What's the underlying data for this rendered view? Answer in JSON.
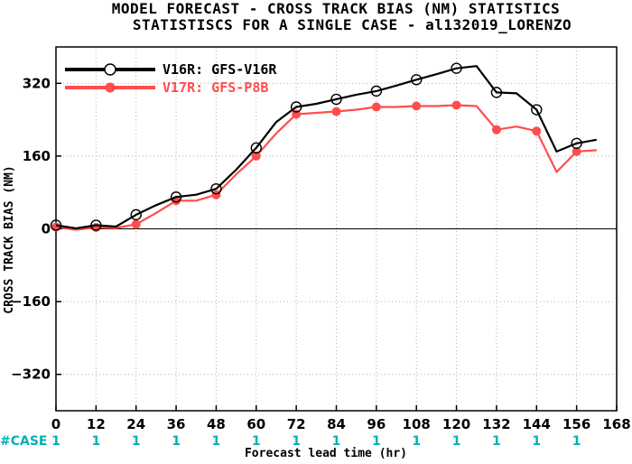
{
  "chart_data": {
    "type": "line",
    "title": "MODEL FORECAST - CROSS TRACK BIAS (NM) STATISTICS",
    "subtitle": "STATISTISCS FOR A SINGLE CASE - al132019_LORENZO",
    "xlabel": "Forecast lead time (hr)",
    "ylabel": "CROSS TRACK BIAS (NM)",
    "xlim": [
      0,
      168
    ],
    "ylim": [
      -400,
      400
    ],
    "xticks": [
      0,
      12,
      24,
      36,
      48,
      60,
      72,
      84,
      96,
      108,
      120,
      132,
      144,
      156,
      168
    ],
    "yticks": [
      -320,
      -160,
      0,
      160,
      320
    ],
    "grid": true,
    "legend_position": "top-left",
    "series": [
      {
        "name": "V16R: GFS-V16R",
        "color": "#000000",
        "marker": "open-circle",
        "x": [
          0,
          6,
          12,
          18,
          24,
          30,
          36,
          42,
          48,
          54,
          60,
          66,
          72,
          78,
          84,
          90,
          96,
          102,
          108,
          114,
          120,
          126,
          132,
          138,
          144,
          150,
          156,
          162
        ],
        "y": [
          8,
          1,
          8,
          5,
          31,
          52,
          70,
          75,
          88,
          130,
          178,
          235,
          268,
          275,
          285,
          295,
          303,
          315,
          328,
          340,
          353,
          358,
          300,
          298,
          262,
          170,
          188,
          196
        ],
        "marker_x": [
          0,
          12,
          24,
          36,
          48,
          60,
          72,
          84,
          96,
          108,
          120,
          132,
          144,
          156
        ]
      },
      {
        "name": "V17R: GFS-P8B",
        "color": "#ff4d4d",
        "marker": "filled-circle",
        "x": [
          0,
          6,
          12,
          18,
          24,
          30,
          36,
          42,
          48,
          54,
          60,
          66,
          72,
          78,
          84,
          90,
          96,
          102,
          108,
          114,
          120,
          126,
          132,
          138,
          144,
          150,
          156,
          162
        ],
        "y": [
          4,
          -2,
          3,
          2,
          10,
          35,
          62,
          62,
          75,
          120,
          160,
          210,
          252,
          255,
          258,
          262,
          268,
          268,
          270,
          270,
          272,
          270,
          218,
          225,
          215,
          125,
          170,
          173
        ],
        "marker_x": [
          0,
          12,
          24,
          36,
          48,
          60,
          72,
          84,
          96,
          108,
          120,
          132,
          144,
          156
        ]
      }
    ],
    "case_row_label": "#CASE",
    "case_counts": [
      "1",
      "1",
      "1",
      "1",
      "1",
      "1",
      "1",
      "1",
      "1",
      "1",
      "1",
      "1",
      "1",
      "1"
    ]
  },
  "colors": {
    "case_text": "#00b3b3"
  }
}
